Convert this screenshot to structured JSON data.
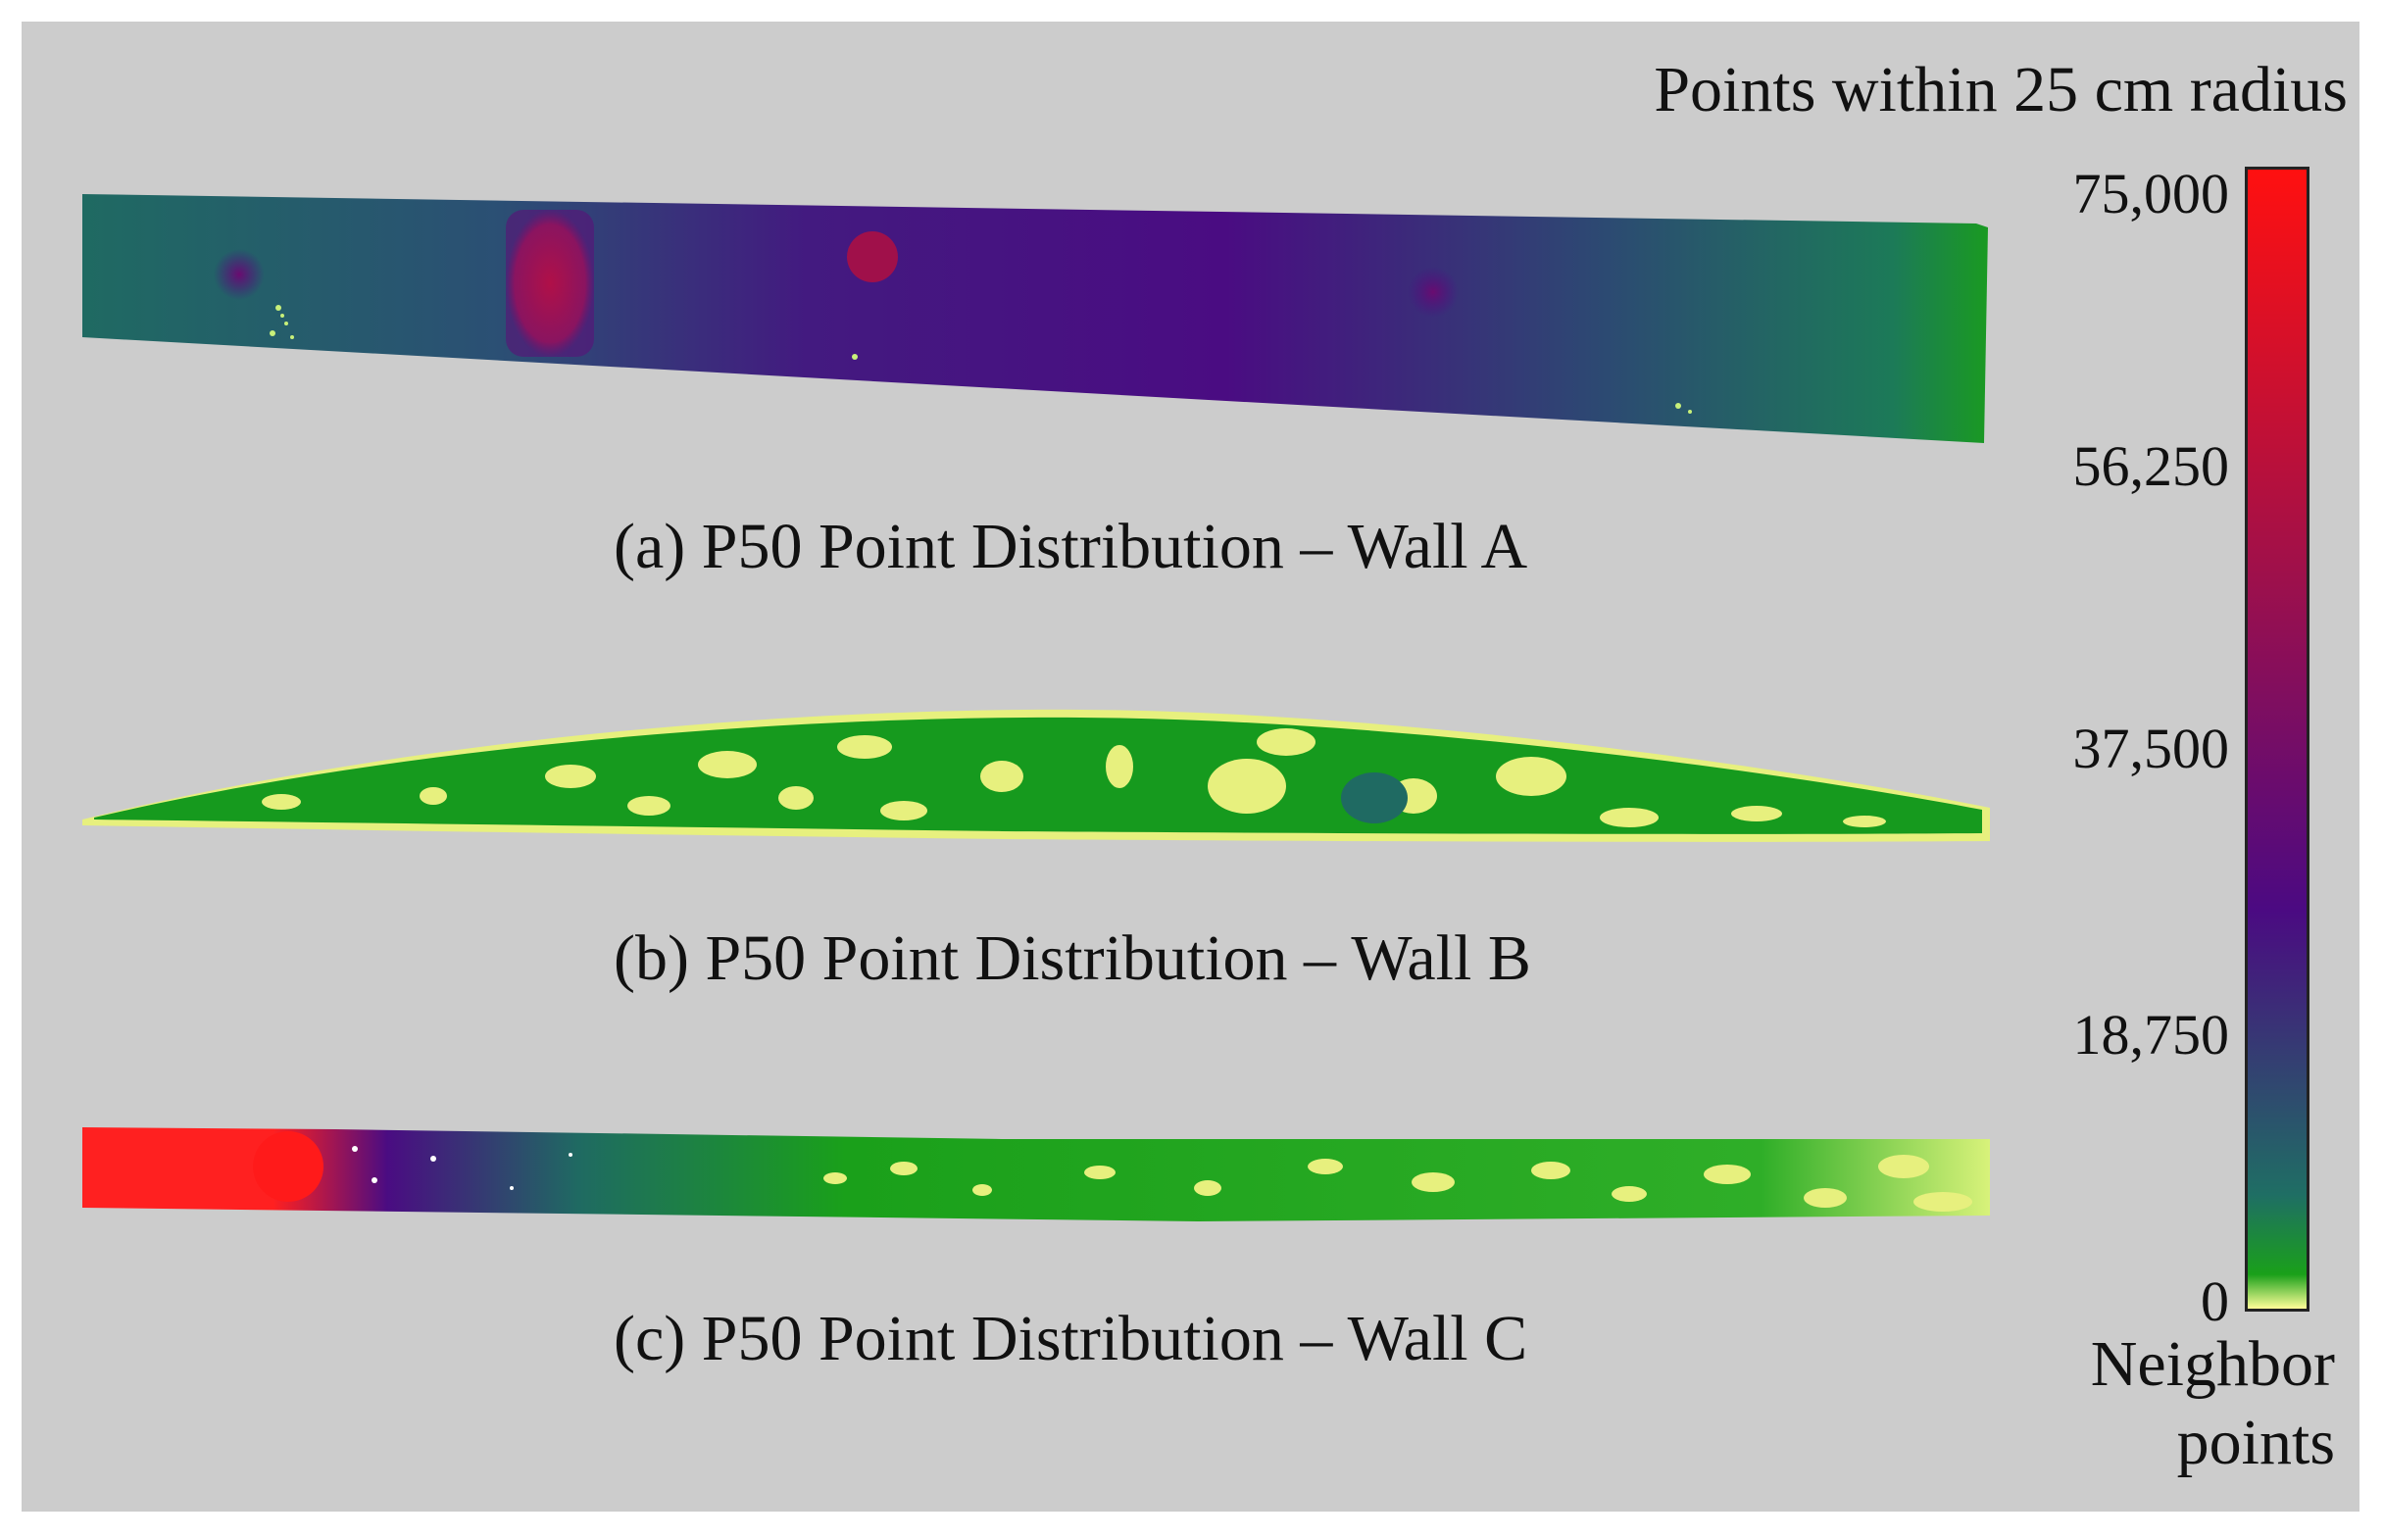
{
  "figure": {
    "colorbar": {
      "title": "Points within 25 cm radius",
      "label_line1": "Neighbor",
      "label_line2": "points",
      "ticks": [
        "75,000",
        "56,250",
        "37,500",
        "18,750",
        "0"
      ],
      "min": 0,
      "max": 75000,
      "colors": [
        "#ffff99",
        "#1aa01a",
        "#1f6e64",
        "#4b0a82",
        "#a0104a",
        "#ff1010"
      ]
    },
    "panels": [
      {
        "caption": "(a) P50 Point Distribution – Wall A"
      },
      {
        "caption": "(b) P50 Point Distribution – Wall B"
      },
      {
        "caption": "(c) P50 Point Distribution – Wall C"
      }
    ]
  }
}
